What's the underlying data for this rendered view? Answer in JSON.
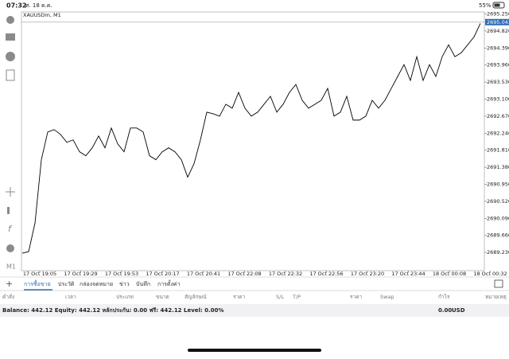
{
  "status_bar": {
    "time": "07:32",
    "date": "ศ. 18 ต.ค.",
    "battery": "55%"
  },
  "chart": {
    "type": "line",
    "title": "XAUUSDm, M1",
    "color": "#000000",
    "values": [
      2689.21,
      2689.25,
      2689.97,
      2691.57,
      2692.27,
      2692.33,
      2692.21,
      2692.01,
      2692.07,
      2691.77,
      2691.67,
      2691.87,
      2692.17,
      2691.87,
      2692.37,
      2691.97,
      2691.77,
      2692.37,
      2692.37,
      2692.27,
      2691.67,
      2691.57,
      2691.77,
      2691.87,
      2691.77,
      2691.57,
      2691.13,
      2691.47,
      2692.07,
      2692.77,
      2692.73,
      2692.67,
      2692.97,
      2692.87,
      2693.27,
      2692.87,
      2692.67,
      2692.77,
      2692.97,
      2693.17,
      2692.77,
      2692.97,
      2693.27,
      2693.47,
      2693.07,
      2692.87,
      2692.97,
      2693.07,
      2693.37,
      2692.67,
      2692.77,
      2693.17,
      2692.57,
      2692.57,
      2692.67,
      2693.07,
      2692.87,
      2693.07,
      2693.37,
      2693.67,
      2693.97,
      2693.57,
      2694.17,
      2693.57,
      2693.97,
      2693.67,
      2694.17,
      2694.47,
      2694.17,
      2694.27,
      2694.47,
      2694.67,
      2695.01
    ],
    "ylim": [
      2688.77,
      2695.3
    ],
    "yticks": [
      {
        "value": 2695.25,
        "label": "2695.250"
      },
      {
        "value": 2694.82,
        "label": "2694.820"
      },
      {
        "value": 2694.39,
        "label": "2694.390"
      },
      {
        "value": 2693.96,
        "label": "2693.960"
      },
      {
        "value": 2693.53,
        "label": "2693.530"
      },
      {
        "value": 2693.1,
        "label": "2693.100"
      },
      {
        "value": 2692.67,
        "label": "2692.670"
      },
      {
        "value": 2692.24,
        "label": "2692.240"
      },
      {
        "value": 2691.81,
        "label": "2691.810"
      },
      {
        "value": 2691.38,
        "label": "2691.380"
      },
      {
        "value": 2690.95,
        "label": "2690.950"
      },
      {
        "value": 2690.52,
        "label": "2690.520"
      },
      {
        "value": 2690.09,
        "label": "2690.090"
      },
      {
        "value": 2689.66,
        "label": "2689.660"
      },
      {
        "value": 2689.23,
        "label": "2689.230"
      }
    ],
    "current_price": {
      "value": 2695.043,
      "label": "2695.043"
    },
    "x_labels": [
      "17 Oct 19:05",
      "17 Oct 19:29",
      "17 Oct 19:53",
      "17 Oct 20:17",
      "17 Oct 20:41",
      "17 Oct 22:08",
      "17 Oct 22:32",
      "17 Oct 22:56",
      "17 Oct 23:20",
      "17 Oct 23:44",
      "18 Oct 00:08",
      "18 Oct 00:32"
    ]
  },
  "toolbar_label": "M1",
  "tabs": [
    "การซื้อขาย",
    "ประวัติ",
    "กล่องจดหมาย",
    "ข่าว",
    "บันทึก",
    "การตั้งค่า"
  ],
  "columns": [
    "คำสั่ง",
    "เวลา",
    "ประเภท",
    "ขนาด",
    "สัญลักษณ์",
    "ราคา",
    "S/L",
    "T/P",
    "ราคา",
    "Swap",
    "กำไร",
    "หมายเหตุ"
  ],
  "account": {
    "summary": "Balance: 442.12 Equity: 442.12 หลักประกัน: 0.00 ฟรี: 442.12 Level: 0.00%",
    "profit": "0.00",
    "currency": "USD"
  }
}
